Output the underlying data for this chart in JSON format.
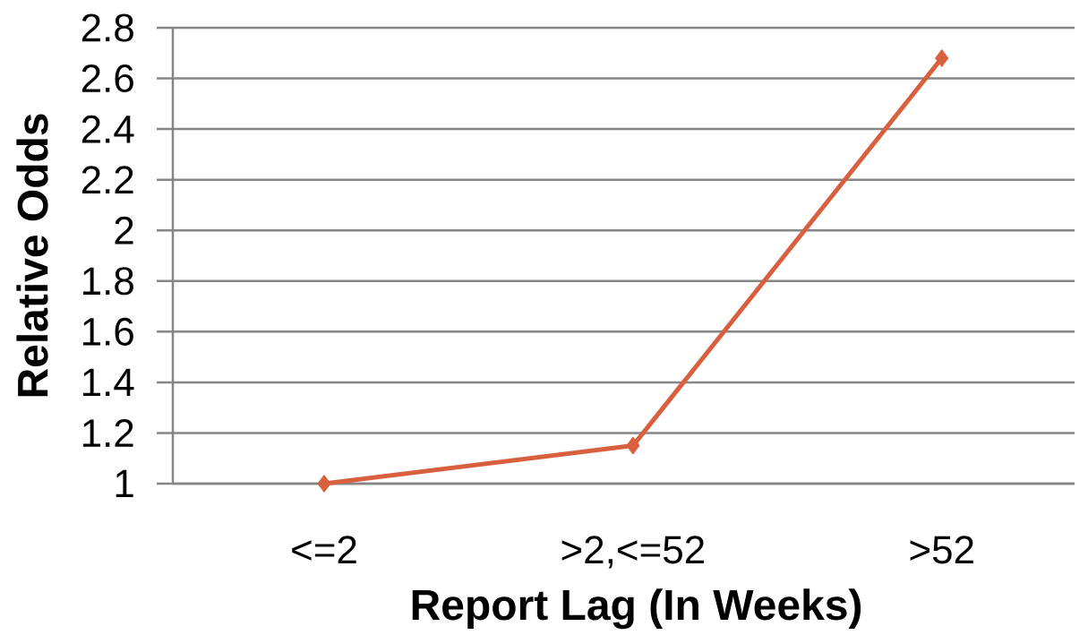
{
  "chart_data": {
    "type": "line",
    "xlabel": "Report Lag (In Weeks)",
    "ylabel": "Relative Odds",
    "categories": [
      "<=2",
      ">2,<=52",
      ">52"
    ],
    "series": [
      {
        "color": "#d9603f",
        "values": [
          1,
          1.15,
          2.68
        ]
      }
    ],
    "ylim": [
      1,
      2.8
    ],
    "yticks": [
      1,
      1.2,
      1.4,
      1.6,
      1.8,
      2,
      2.2,
      2.4,
      2.6,
      2.8
    ],
    "grid": "y",
    "marker": "diamond",
    "line_style": "solid"
  }
}
